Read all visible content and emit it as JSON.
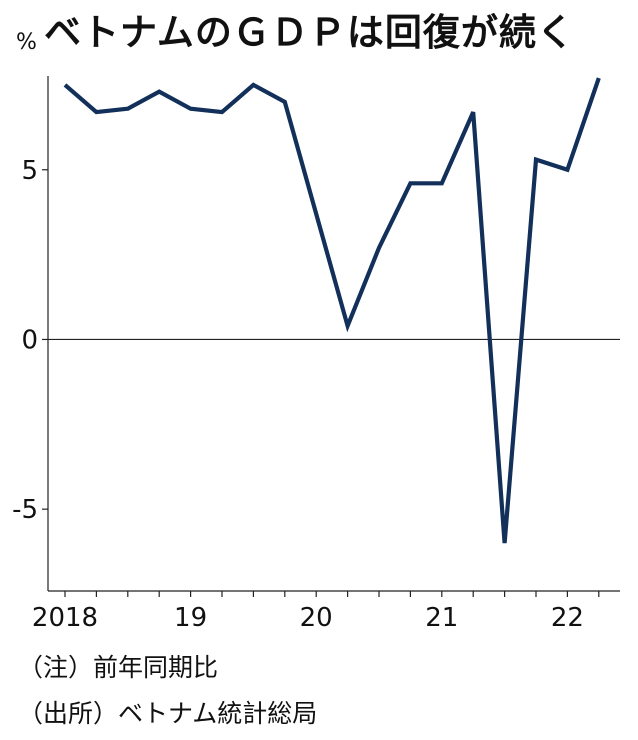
{
  "title": "ベトナムのＧＤＰは回復が続く",
  "unit": "%",
  "notes": {
    "note": "（注）前年同期比",
    "source": "（出所）ベトナム統計総局"
  },
  "chart_data": {
    "type": "line",
    "title": "ベトナムのＧＤＰは回復が続く",
    "ylabel": "%",
    "ylim": [
      -7.5,
      9
    ],
    "yticks": [
      -5,
      0,
      5
    ],
    "xticklabels": [
      "2018",
      "19",
      "20",
      "21",
      "22"
    ],
    "grid": false,
    "series": [
      {
        "x": [
          "2018Q1",
          "2018Q2",
          "2018Q3",
          "2018Q4",
          "2019Q1",
          "2019Q2",
          "2019Q3",
          "2019Q4",
          "2020Q1",
          "2020Q2",
          "2020Q3",
          "2020Q4",
          "2021Q1",
          "2021Q2",
          "2021Q3",
          "2021Q4",
          "2022Q1",
          "2022Q2"
        ],
        "values": [
          7.5,
          6.7,
          6.8,
          7.3,
          6.8,
          6.7,
          7.5,
          7.0,
          3.7,
          0.4,
          2.7,
          4.6,
          4.6,
          6.7,
          -6.0,
          5.3,
          5.0,
          7.7
        ],
        "color": "#12305a"
      }
    ],
    "zero_line": true
  }
}
